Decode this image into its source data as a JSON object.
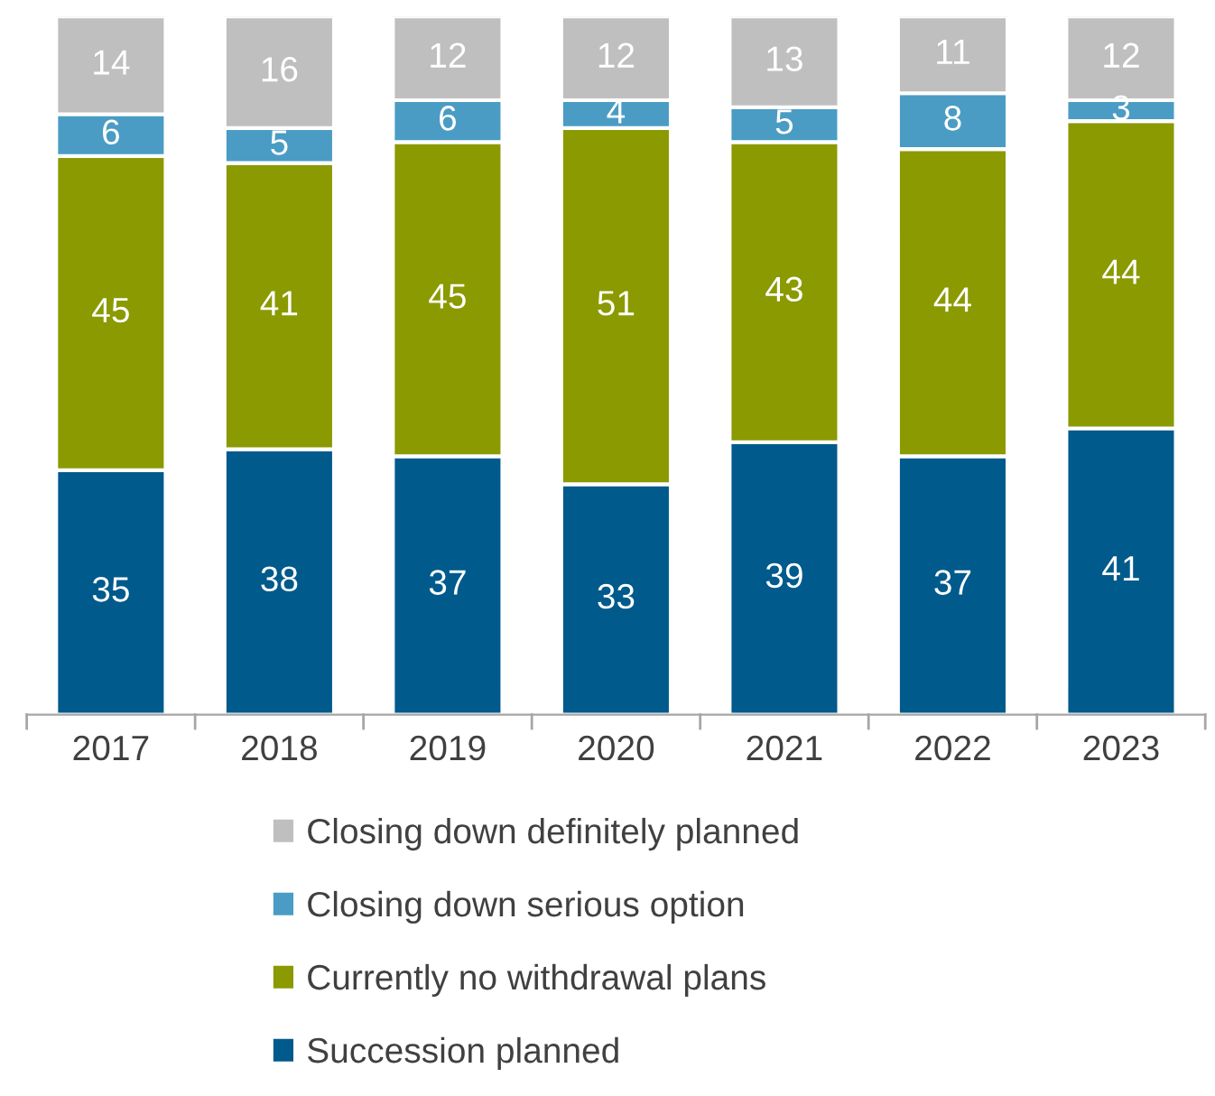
{
  "chart_data": {
    "type": "bar",
    "stacked": true,
    "data_labels": true,
    "legend": "bottom",
    "categories": [
      "2017",
      "2018",
      "2019",
      "2020",
      "2021",
      "2022",
      "2023"
    ],
    "series": [
      {
        "name": "Succession planned",
        "color": "#005a8c",
        "values": [
          35,
          38,
          37,
          33,
          39,
          37,
          41
        ]
      },
      {
        "name": "Currently no withdrawal plans",
        "color": "#8a9a00",
        "values": [
          45,
          41,
          45,
          51,
          43,
          44,
          44
        ]
      },
      {
        "name": "Closing down serious option",
        "color": "#4a9cc4",
        "values": [
          6,
          5,
          6,
          4,
          5,
          8,
          3
        ]
      },
      {
        "name": "Closing down definitely planned",
        "color": "#bfbfbf",
        "values": [
          14,
          16,
          12,
          12,
          13,
          11,
          12
        ]
      }
    ]
  }
}
